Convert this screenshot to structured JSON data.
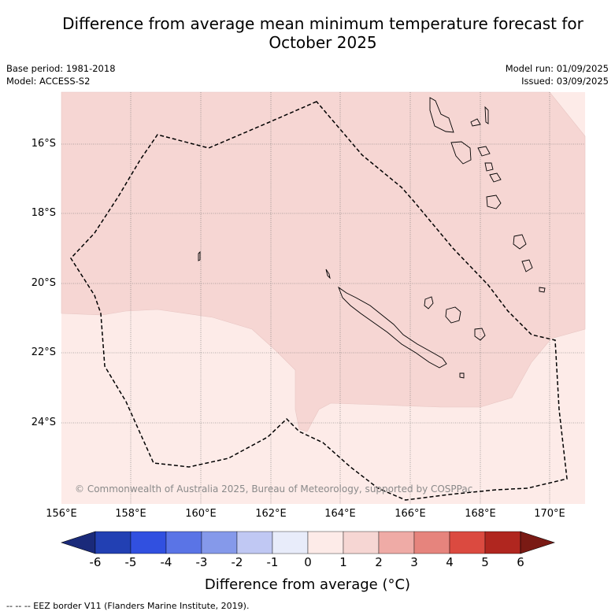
{
  "title": {
    "line1": "Difference from average mean minimum temperature forecast for",
    "line2": "October 2025"
  },
  "meta": {
    "base_period": "Base period: 1981-2018",
    "model": "Model: ACCESS-S2",
    "model_run": "Model run: 01/09/2025",
    "issued": "Issued: 03/09/2025"
  },
  "map": {
    "lat_labels": [
      "16°S",
      "18°S",
      "20°S",
      "22°S",
      "24°S"
    ],
    "lon_labels": [
      "156°E",
      "158°E",
      "160°E",
      "162°E",
      "164°E",
      "166°E",
      "168°E",
      "170°E"
    ],
    "copyright": "© Commonwealth of Australia 2025, Bureau of Meteorology, supported by COSPPac",
    "fill_colors": {
      "zero_to_one": "#fdebe8",
      "one_to_two": "#f6d6d3"
    }
  },
  "colorbar": {
    "ticks": [
      "-6",
      "-5",
      "-4",
      "-3",
      "-2",
      "-1",
      "0",
      "1",
      "2",
      "3",
      "4",
      "5",
      "6"
    ],
    "colors": [
      "#1a2a7a",
      "#2240b3",
      "#3150e0",
      "#5a74e6",
      "#8599ea",
      "#c0c8f3",
      "#e8ecfa",
      "#fdebe8",
      "#f6d6d3",
      "#efaba6",
      "#e6847d",
      "#db4a40",
      "#b0261f",
      "#7a1a14"
    ],
    "label": "Difference from average (°C)"
  },
  "footnote": "--  --  -- EEZ border V11 (Flanders Marine Institute, 2019)."
}
